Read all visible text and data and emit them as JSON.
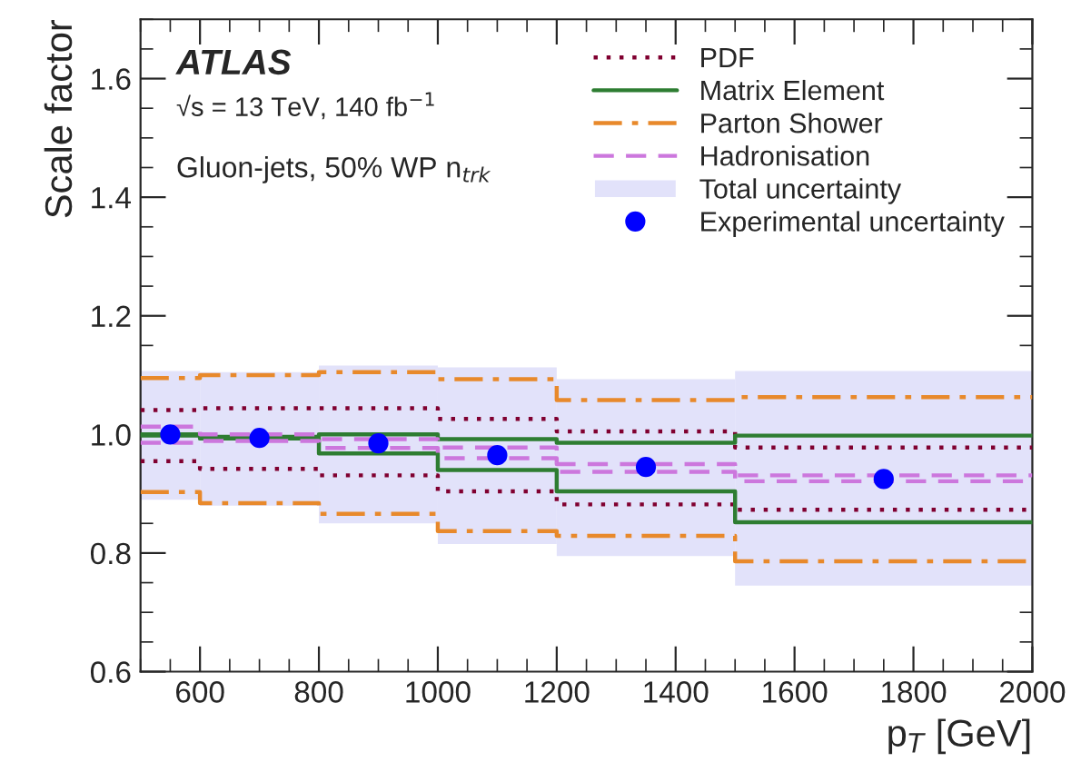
{
  "chart_data": {
    "type": "step",
    "xlabel": "p$_{T}$ [GeV]",
    "ylabel": "Scale factor",
    "annotations": [
      "ATLAS",
      "√s = 13 TeV, 140 fb$^{−1}$",
      "Gluon-jets, 50% WP n$_{trk}$"
    ],
    "x": [
      500,
      600,
      800,
      1000,
      1200,
      1500,
      2000
    ],
    "series": [
      {
        "name": "PDF",
        "color": "#800030",
        "line_style": "dotted",
        "values": [
          1.041,
          1.044,
          1.044,
          1.026,
          1.005,
          0.978,
          0.978
        ]
      },
      {
        "color": "#800030",
        "line_style": "dotted",
        "values": [
          0.955,
          0.942,
          0.931,
          0.904,
          0.882,
          0.873,
          0.873
        ]
      },
      {
        "name": "Matrix Element",
        "color": "#2e7d32",
        "line_style": "solid",
        "values": [
          1.0,
          0.996,
          1.0,
          0.992,
          0.986,
          0.998,
          0.998
        ]
      },
      {
        "color": "#2e7d32",
        "line_style": "solid",
        "values": [
          0.998,
          0.993,
          0.968,
          0.94,
          0.904,
          0.852,
          0.852
        ]
      },
      {
        "name": "Parton Shower",
        "color": "#e8892b",
        "line_style": "dashdot",
        "values": [
          1.095,
          1.1,
          1.105,
          1.093,
          1.058,
          1.063,
          1.063
        ]
      },
      {
        "color": "#e8892b",
        "line_style": "dashdot",
        "values": [
          0.903,
          0.884,
          0.866,
          0.837,
          0.829,
          0.786,
          0.786
        ]
      },
      {
        "name": "Hadronisation",
        "color": "#cc77dd",
        "line_style": "dashed",
        "values": [
          1.013,
          1.0,
          0.992,
          0.978,
          0.95,
          0.931,
          0.931
        ]
      },
      {
        "color": "#cc77dd",
        "line_style": "dashed",
        "values": [
          0.986,
          0.989,
          0.977,
          0.96,
          0.937,
          0.921,
          0.921
        ]
      },
      {
        "name": "Total uncertainty",
        "type": "bar",
        "color": "#e2e2fa",
        "x": [
          550,
          700,
          900,
          1100,
          1350,
          1750
        ],
        "base": [
          0.89,
          0.88,
          0.85,
          0.815,
          0.795,
          0.745
        ],
        "values": [
          0.217,
          0.225,
          0.266,
          0.298,
          0.298,
          0.362
        ]
      },
      {
        "name": "Experimental uncertainty",
        "type": "scatter",
        "color": "#0000ff",
        "marker": "circle",
        "x": [
          550,
          700,
          900,
          1100,
          1350,
          1750
        ],
        "values": [
          1.0,
          0.994,
          0.985,
          0.965,
          0.945,
          0.925
        ],
        "errors": [
          0.006,
          0.006,
          0.006,
          0.006,
          0.006,
          0.006
        ]
      }
    ],
    "xlim": [
      500,
      2000
    ],
    "xticks": [
      600,
      800,
      1000,
      1200,
      1400,
      1600,
      1800,
      2000
    ],
    "ylim": [
      0.6,
      1.7
    ],
    "yticks": [
      0.6,
      0.8,
      {
        "value": 1.0,
        "label": "1.0"
      },
      1.2,
      1.4,
      1.6
    ],
    "grid": false,
    "legend": "top right"
  }
}
